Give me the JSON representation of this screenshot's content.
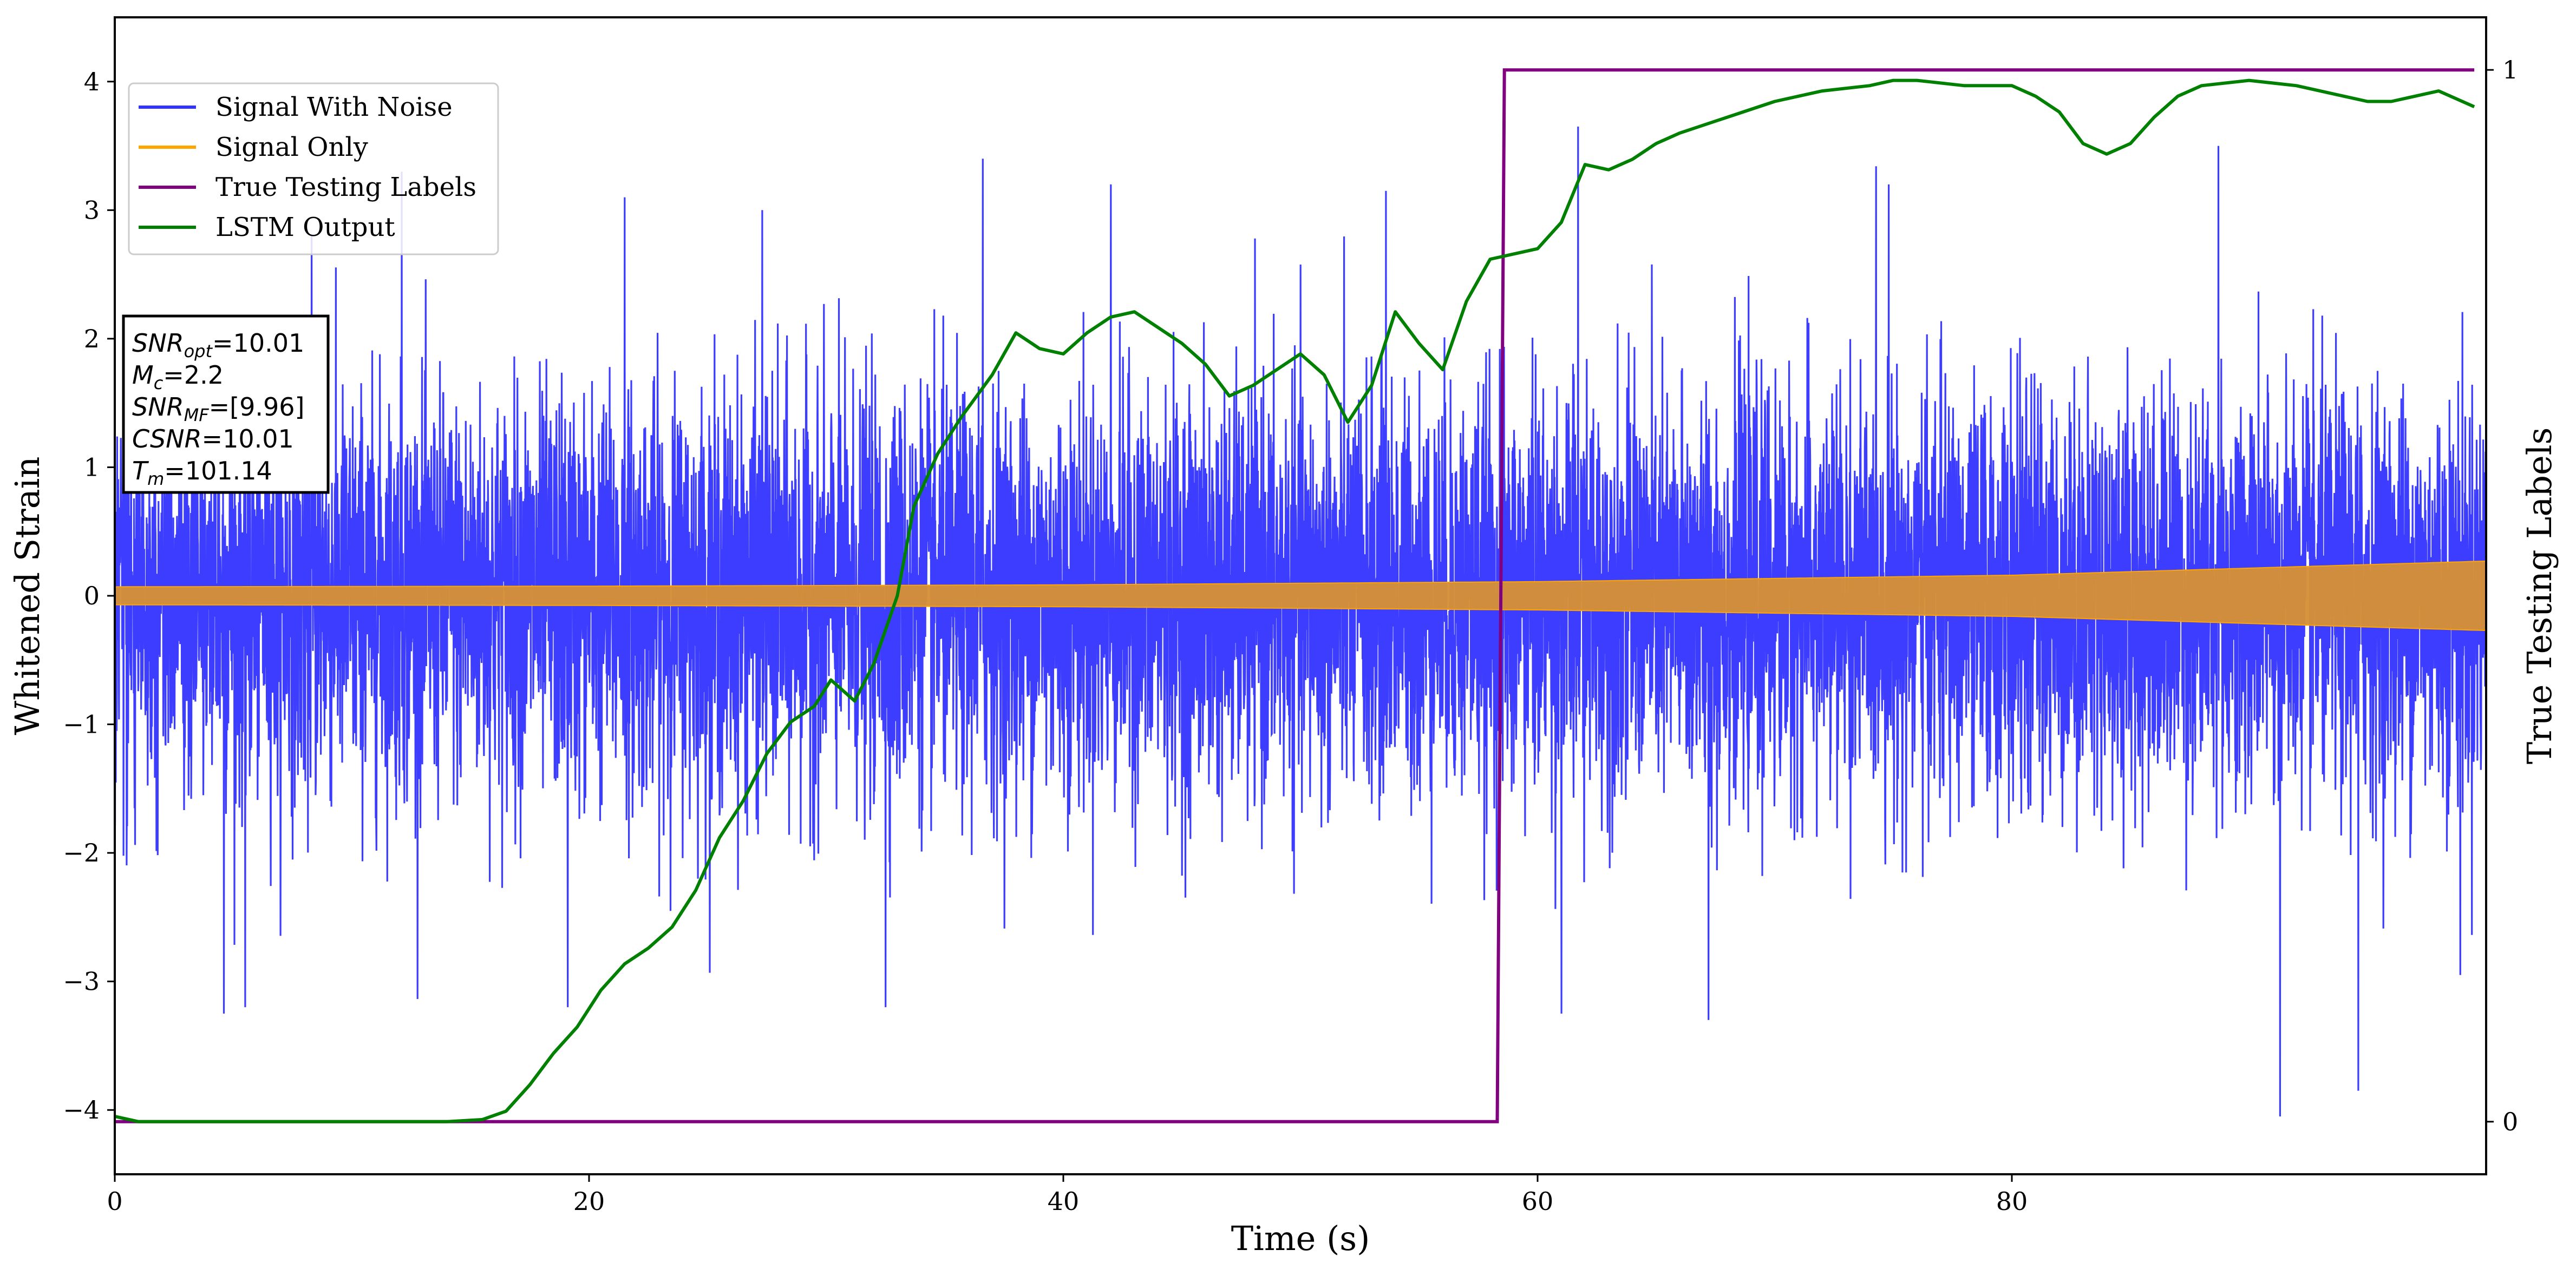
{
  "chart_data": {
    "type": "line",
    "xlabel": "Time (s)",
    "ylabel": "Whitened Strain",
    "y2label": "True Testing Labels",
    "xlim": [
      0,
      100
    ],
    "ylim": [
      -4.5,
      4.5
    ],
    "y2lim": [
      -0.05,
      1.05
    ],
    "x_ticks": [
      0,
      20,
      40,
      60,
      80
    ],
    "y_ticks": [
      -4,
      -3,
      -2,
      -1,
      0,
      1,
      2,
      3,
      4
    ],
    "y2_ticks": [
      0,
      1
    ],
    "grid": false,
    "legend_position": "top-left",
    "legend": [
      "Signal With Noise",
      "Signal Only",
      "True Testing Labels",
      "LSTM Output"
    ],
    "series": [
      {
        "name": "Signal With Noise",
        "axis": "left",
        "color": "#3333ff",
        "kind": "noise",
        "mean": 0.0,
        "typical_amplitude": 1.0,
        "peak_range": [
          -4.05,
          3.8
        ],
        "peaks": [
          {
            "x": 8.3,
            "y": 2.8
          },
          {
            "x": 12.1,
            "y": 3.3
          },
          {
            "x": 21.5,
            "y": 3.1
          },
          {
            "x": 27.3,
            "y": 3.0
          },
          {
            "x": 36.6,
            "y": 3.4
          },
          {
            "x": 42.0,
            "y": 3.2
          },
          {
            "x": 53.6,
            "y": 3.15
          },
          {
            "x": 61.7,
            "y": 3.65
          },
          {
            "x": 74.8,
            "y": 3.2
          },
          {
            "x": 88.7,
            "y": 3.5
          },
          {
            "x": 4.6,
            "y": -3.25
          },
          {
            "x": 5.5,
            "y": -3.2
          },
          {
            "x": 19.1,
            "y": -3.2
          },
          {
            "x": 32.5,
            "y": -3.2
          },
          {
            "x": 61.0,
            "y": -3.25
          },
          {
            "x": 67.2,
            "y": -3.3
          },
          {
            "x": 91.3,
            "y": -4.05
          },
          {
            "x": 94.6,
            "y": -3.85
          },
          {
            "x": 98.9,
            "y": -2.95
          }
        ]
      },
      {
        "name": "Signal Only",
        "axis": "left",
        "color": "#ffa500",
        "kind": "chirp-envelope",
        "x": [
          0,
          20,
          40,
          60,
          80,
          100
        ],
        "amplitude": [
          0.07,
          0.075,
          0.085,
          0.11,
          0.16,
          0.27
        ]
      },
      {
        "name": "True Testing Labels",
        "axis": "right",
        "color": "#800080",
        "kind": "step",
        "x": [
          0,
          58.3,
          58.6,
          99.5
        ],
        "y": [
          0,
          0,
          1,
          1
        ]
      },
      {
        "name": "LSTM Output",
        "axis": "right",
        "color": "#008000",
        "kind": "line",
        "x": [
          0,
          1,
          14,
          15.5,
          16.5,
          17.5,
          18.5,
          19.5,
          20.5,
          21.5,
          22.5,
          23.5,
          24.5,
          25.5,
          26.5,
          27.5,
          28.5,
          29.5,
          30.2,
          31.2,
          32,
          33,
          33.7,
          34.7,
          35.7,
          37,
          38,
          39,
          40,
          41,
          42,
          43,
          44,
          45,
          46,
          47,
          48,
          49,
          50,
          51,
          52,
          53,
          54,
          55,
          56,
          57,
          58,
          59,
          60,
          61,
          62,
          63,
          64,
          65,
          66,
          68,
          70,
          72,
          74,
          75,
          76,
          78,
          80,
          81,
          82,
          83,
          84,
          85,
          86,
          87,
          88,
          90,
          92,
          93,
          94,
          95,
          96,
          97,
          98,
          99.5
        ],
        "y": [
          0.005,
          0.0,
          0.0,
          0.002,
          0.01,
          0.035,
          0.065,
          0.09,
          0.125,
          0.15,
          0.165,
          0.185,
          0.22,
          0.27,
          0.305,
          0.35,
          0.38,
          0.395,
          0.42,
          0.4,
          0.435,
          0.5,
          0.585,
          0.635,
          0.67,
          0.71,
          0.75,
          0.735,
          0.73,
          0.75,
          0.765,
          0.77,
          0.755,
          0.74,
          0.72,
          0.69,
          0.7,
          0.715,
          0.73,
          0.71,
          0.665,
          0.7,
          0.77,
          0.74,
          0.715,
          0.78,
          0.82,
          0.825,
          0.83,
          0.855,
          0.91,
          0.905,
          0.915,
          0.93,
          0.94,
          0.955,
          0.97,
          0.98,
          0.985,
          0.99,
          0.99,
          0.985,
          0.985,
          0.975,
          0.96,
          0.93,
          0.92,
          0.93,
          0.955,
          0.975,
          0.985,
          0.99,
          0.985,
          0.98,
          0.975,
          0.97,
          0.97,
          0.975,
          0.98,
          0.965
        ]
      }
    ],
    "annotations": [
      {
        "main": "SNR",
        "sub": "opt",
        "value": "=10.01"
      },
      {
        "main": "M",
        "sub": "c",
        "value": "=2.2"
      },
      {
        "main": "SNR",
        "sub": "MF",
        "value": "=[9.96]"
      },
      {
        "main": "CSNR",
        "sub": "",
        "value": "=10.01"
      },
      {
        "main": "T",
        "sub": "m",
        "value": "=101.14"
      }
    ]
  }
}
